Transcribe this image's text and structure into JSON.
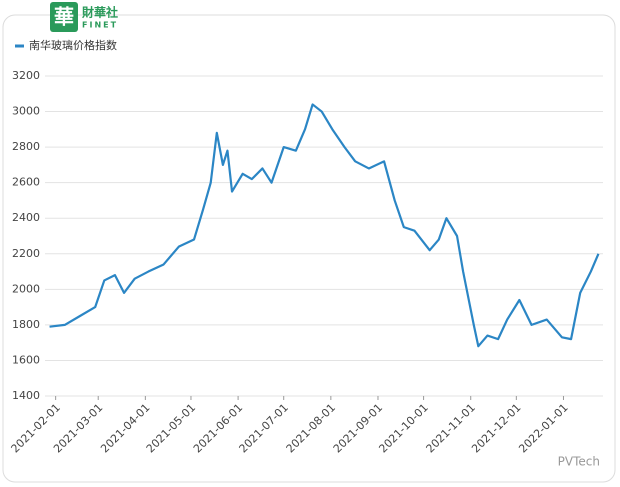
{
  "logo": {
    "mark": "華",
    "brand": "財華社",
    "brand_en": "FINET"
  },
  "watermark": "PVTech",
  "chart_data": {
    "type": "line",
    "series": [
      {
        "name": "南华玻璃价格指数",
        "color": "#2b86c5",
        "x": [
          "2021-01-28",
          "2021-02-07",
          "2021-02-17",
          "2021-02-27",
          "2021-03-05",
          "2021-03-12",
          "2021-03-18",
          "2021-03-25",
          "2021-04-03",
          "2021-04-13",
          "2021-04-23",
          "2021-05-03",
          "2021-05-09",
          "2021-05-14",
          "2021-05-18",
          "2021-05-22",
          "2021-05-25",
          "2021-05-28",
          "2021-06-04",
          "2021-06-10",
          "2021-06-17",
          "2021-06-23",
          "2021-07-01",
          "2021-07-09",
          "2021-07-15",
          "2021-07-20",
          "2021-07-26",
          "2021-08-02",
          "2021-08-10",
          "2021-08-17",
          "2021-08-26",
          "2021-09-05",
          "2021-09-12",
          "2021-09-18",
          "2021-09-25",
          "2021-10-05",
          "2021-10-11",
          "2021-10-16",
          "2021-10-23",
          "2021-10-27",
          "2021-11-03",
          "2021-11-06",
          "2021-11-12",
          "2021-11-19",
          "2021-11-25",
          "2021-12-03",
          "2021-12-11",
          "2021-12-21",
          "2021-12-31",
          "2022-01-06",
          "2022-01-12",
          "2022-01-19",
          "2022-01-24"
        ],
        "values": [
          1790,
          1800,
          1850,
          1900,
          2050,
          2080,
          1980,
          2060,
          2100,
          2140,
          2240,
          2280,
          2450,
          2600,
          2880,
          2700,
          2780,
          2550,
          2650,
          2620,
          2680,
          2600,
          2800,
          2780,
          2900,
          3040,
          3000,
          2900,
          2800,
          2720,
          2680,
          2720,
          2500,
          2350,
          2330,
          2220,
          2280,
          2400,
          2300,
          2100,
          1800,
          1680,
          1740,
          1720,
          1830,
          1940,
          1800,
          1830,
          1730,
          1720,
          1980,
          2100,
          2200
        ]
      }
    ],
    "xlim": [
      "2021-01-25",
      "2022-01-27"
    ],
    "xticks": [
      "2021-02-01",
      "2021-03-01",
      "2021-04-01",
      "2021-05-01",
      "2021-06-01",
      "2021-07-01",
      "2021-08-01",
      "2021-09-01",
      "2021-10-01",
      "2021-11-01",
      "2021-12-01",
      "2022-01-01"
    ],
    "ylim": [
      1400,
      3200
    ],
    "yticks": [
      1400,
      1600,
      1800,
      2000,
      2200,
      2400,
      2600,
      2800,
      3000,
      3200
    ],
    "grid": true
  }
}
